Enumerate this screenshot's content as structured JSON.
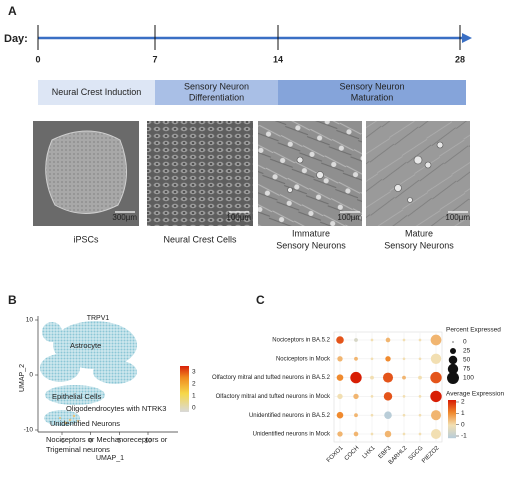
{
  "panel_a": {
    "label": "A",
    "timeline": {
      "prefix": "Day:",
      "days": [
        0,
        7,
        14,
        28
      ]
    },
    "stages": [
      [
        "Neural Crest Induction"
      ],
      [
        "Sensory Neuron",
        "Differentiation"
      ],
      [
        "Sensory Neuron",
        "Maturation"
      ]
    ],
    "images": [
      {
        "scale": "300µm",
        "caption": [
          "iPSCs"
        ]
      },
      {
        "scale": "100µm",
        "caption": [
          "Neural Crest Cells"
        ]
      },
      {
        "scale": "100µm",
        "caption": [
          "Immature",
          "Sensory Neurons"
        ]
      },
      {
        "scale": "100µm",
        "caption": [
          "Mature",
          "Sensory Neurons"
        ]
      }
    ]
  },
  "panel_b": {
    "label": "B",
    "title": "TRPV1",
    "x_label": "UMAP_1",
    "y_label": "UMAP_2",
    "xticks": [
      -5,
      0,
      5,
      10
    ],
    "yticks": [
      10,
      0,
      -10
    ],
    "colorbar_ticks": [
      3,
      2,
      1,
      0
    ],
    "clusters": [
      [
        "Astrocyte"
      ],
      [
        "Epithelial Cells"
      ],
      [
        "Oligodendrocytes with NTRK3"
      ],
      [
        "Unidentified Neurons"
      ],
      [
        "Nociceptors or Mechanoreceptors or",
        "Trigeminal neurons"
      ]
    ]
  },
  "panel_c": {
    "label": "C",
    "rows": [
      "Nociceptors in BA.5.2",
      "Nociceptors in Mock",
      "Olfactory mitral and tufted neurons in BA.5.2",
      "Olfactory mitral and tufted neurons in Mock",
      "Unidentified neurons in BA.5.2",
      "Unidentified neurons in Mock"
    ],
    "genes": [
      "FOXO1",
      "COCH",
      "LHX1",
      "EBF3",
      "BARHL2",
      "SGCG",
      "PIEZO2"
    ],
    "percent": [
      [
        40,
        10,
        5,
        15,
        5,
        5,
        80
      ],
      [
        20,
        10,
        5,
        20,
        5,
        5,
        75
      ],
      [
        30,
        90,
        10,
        70,
        10,
        10,
        90
      ],
      [
        20,
        20,
        5,
        50,
        5,
        5,
        90
      ],
      [
        30,
        10,
        5,
        40,
        5,
        5,
        70
      ],
      [
        20,
        15,
        5,
        30,
        5,
        5,
        70
      ]
    ],
    "average": [
      [
        1.5,
        -0.5,
        0,
        0.5,
        0,
        0,
        0.5
      ],
      [
        0.5,
        0.5,
        0,
        1,
        0,
        0,
        0
      ],
      [
        1,
        2,
        0,
        1.5,
        0.5,
        0,
        1.5
      ],
      [
        0,
        0.5,
        0,
        1.5,
        0,
        0,
        2
      ],
      [
        1,
        0.5,
        0,
        -1,
        0,
        0,
        0.5
      ],
      [
        0.5,
        0.5,
        0,
        0.5,
        0,
        0,
        0
      ]
    ],
    "size_legend": {
      "title": "Percent Expressed",
      "values": [
        0,
        25,
        50,
        75,
        100
      ]
    },
    "color_legend": {
      "title": "Average Expression",
      "ticks": [
        2,
        1,
        0,
        -1
      ],
      "colors": [
        "#b9cdd8",
        "#f2dfb2",
        "#f08a2e",
        "#d81e05"
      ]
    }
  }
}
